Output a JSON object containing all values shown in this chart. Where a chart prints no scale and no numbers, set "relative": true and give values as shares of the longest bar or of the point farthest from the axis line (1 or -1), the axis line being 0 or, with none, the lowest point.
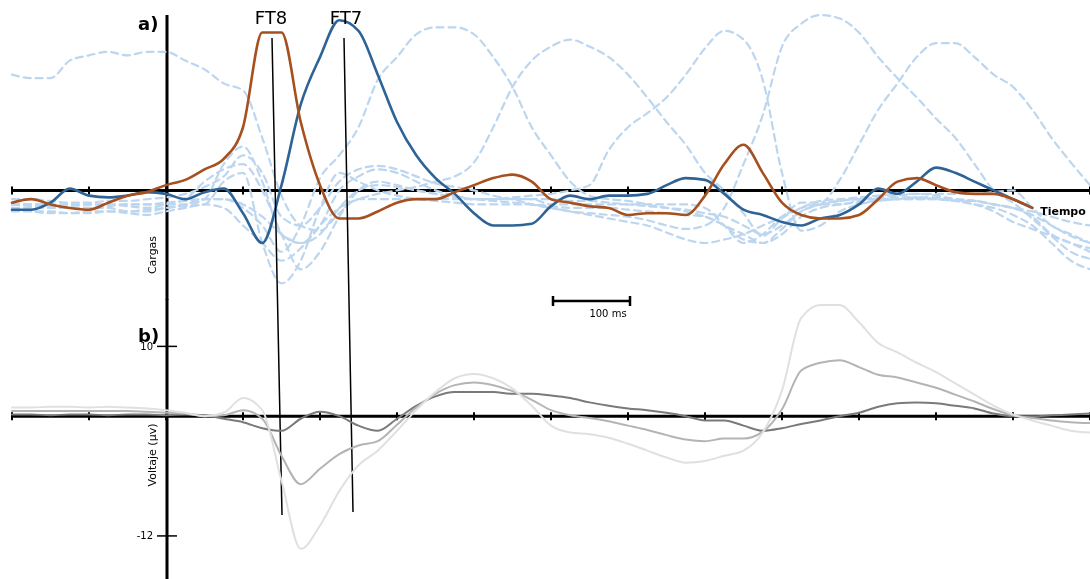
{
  "chart_data": [
    {
      "type": "line",
      "title": "a)",
      "xlabel": "Tiempo",
      "ylabel": "Cargas",
      "relative": true,
      "categories": [
        null,
        null,
        null,
        null,
        null,
        null,
        null,
        null,
        null,
        null,
        null,
        null,
        null,
        null,
        null,
        null,
        null,
        null,
        null,
        null,
        null,
        null,
        null,
        null,
        null,
        null,
        null,
        null,
        null,
        null,
        null,
        null,
        null,
        null,
        null,
        null,
        null,
        null,
        null,
        null,
        null,
        null,
        null,
        null,
        null,
        null,
        null,
        null,
        null,
        null,
        null,
        null,
        null,
        null,
        null,
        null,
        null
      ],
      "annotations": [
        "FT8",
        "FT7",
        "100 ms"
      ],
      "series": [
        {
          "color": "#bcd6ef",
          "line_style": "dashed",
          "values": [
            0.66,
            0.64,
            0.64,
            0.74,
            0.77,
            0.79,
            0.77,
            0.79,
            0.79,
            0.74,
            0.69,
            0.61,
            0.57,
            0.3,
            -0.03,
            -0.2,
            -0.23,
            -0.13,
            -0.05,
            -0.05,
            -0.05,
            -0.05,
            -0.05,
            -0.05,
            -0.05,
            -0.05,
            -0.05,
            -0.05,
            -0.08,
            -0.08,
            -0.08,
            -0.08,
            -0.08,
            -0.08,
            -0.08,
            -0.08,
            -0.1,
            -0.2,
            -0.3,
            -0.25,
            -0.15,
            -0.1,
            -0.08,
            -0.08,
            -0.06,
            -0.05,
            -0.05,
            -0.05,
            -0.05,
            -0.06,
            -0.06,
            -0.08,
            -0.1,
            -0.15,
            -0.25,
            -0.3,
            -0.35
          ]
        },
        {
          "color": "#bcd6ef",
          "line_style": "dashed",
          "values": [
            -0.08,
            -0.08,
            -0.09,
            -0.1,
            -0.1,
            -0.1,
            -0.12,
            -0.12,
            -0.1,
            -0.08,
            -0.05,
            -0.05,
            -0.1,
            -0.2,
            -0.35,
            -0.2,
            0.07,
            0.2,
            0.36,
            0.63,
            0.76,
            0.89,
            0.93,
            0.93,
            0.89,
            0.76,
            0.59,
            0.36,
            0.2,
            0.05,
            -0.03,
            -0.05,
            -0.06,
            -0.08,
            -0.1,
            -0.12,
            -0.15,
            -0.2,
            -0.28,
            -0.3,
            -0.22,
            -0.12,
            -0.08,
            -0.06,
            -0.05,
            -0.05,
            -0.04,
            -0.04,
            -0.05,
            -0.06,
            -0.08,
            -0.12,
            -0.18,
            -0.22,
            -0.26,
            -0.3,
            -0.33
          ]
        },
        {
          "color": "#bcd6ef",
          "line_style": "dashed",
          "values": [
            -0.1,
            -0.12,
            -0.13,
            -0.13,
            -0.12,
            -0.12,
            -0.13,
            -0.14,
            -0.12,
            -0.1,
            -0.08,
            -0.1,
            -0.2,
            -0.3,
            -0.4,
            -0.33,
            -0.2,
            -0.1,
            -0.05,
            -0.02,
            0,
            0.02,
            0.05,
            0.08,
            0.16,
            0.36,
            0.59,
            0.74,
            0.82,
            0.86,
            0.82,
            0.76,
            0.66,
            0.53,
            0.39,
            0.26,
            0.1,
            0,
            -0.13,
            -0.26,
            -0.16,
            -0.1,
            -0.06,
            -0.05,
            -0.04,
            -0.03,
            -0.02,
            -0.02,
            -0.03,
            -0.05,
            -0.06,
            -0.08,
            -0.1,
            -0.12,
            -0.15,
            -0.18,
            -0.2
          ]
        },
        {
          "color": "#bcd6ef",
          "line_style": "dashed",
          "values": [
            -0.1,
            -0.1,
            -0.1,
            -0.09,
            -0.08,
            -0.08,
            -0.09,
            -0.1,
            -0.08,
            -0.05,
            0.05,
            0.12,
            0.15,
            0,
            -0.25,
            -0.45,
            -0.35,
            -0.15,
            0,
            0.05,
            0.03,
            0,
            -0.02,
            -0.04,
            -0.05,
            -0.05,
            -0.04,
            -0.03,
            -0.02,
            0,
            0.03,
            0.23,
            0.36,
            0.44,
            0.53,
            0.66,
            0.81,
            0.91,
            0.86,
            0.63,
            0.1,
            -0.23,
            -0.2,
            -0.12,
            -0.08,
            -0.06,
            -0.05,
            -0.04,
            -0.04,
            -0.05,
            -0.06,
            -0.08,
            -0.1,
            -0.14,
            -0.2,
            -0.26,
            -0.3
          ]
        },
        {
          "color": "#bcd6ef",
          "line_style": "dashed",
          "values": [
            -0.05,
            -0.05,
            -0.06,
            -0.07,
            -0.07,
            -0.06,
            -0.06,
            -0.05,
            -0.04,
            -0.02,
            0.02,
            0.08,
            0.2,
            0.1,
            -0.15,
            -0.2,
            -0.1,
            0.05,
            0.12,
            0.14,
            0.12,
            0.08,
            0.04,
            0.02,
            0,
            -0.03,
            -0.05,
            -0.08,
            -0.1,
            -0.12,
            -0.13,
            -0.14,
            -0.15,
            -0.17,
            -0.2,
            -0.22,
            -0.2,
            -0.1,
            0.15,
            0.43,
            0.82,
            0.95,
            1,
            0.98,
            0.9,
            0.76,
            0.64,
            0.53,
            0.41,
            0.3,
            0.15,
            0,
            -0.07,
            -0.16,
            -0.26,
            -0.35,
            -0.39
          ]
        },
        {
          "color": "#bcd6ef",
          "line_style": "dashed",
          "values": [
            -0.08,
            -0.09,
            -0.1,
            -0.1,
            -0.1,
            -0.09,
            -0.08,
            -0.08,
            -0.07,
            -0.06,
            -0.05,
            -0.05,
            -0.08,
            -0.15,
            -0.25,
            -0.3,
            -0.25,
            -0.1,
            0,
            0.03,
            0.02,
            0,
            -0.02,
            -0.04,
            -0.05,
            -0.06,
            -0.07,
            -0.08,
            -0.1,
            -0.12,
            -0.14,
            -0.16,
            -0.18,
            -0.2,
            -0.24,
            -0.28,
            -0.3,
            -0.28,
            -0.25,
            -0.2,
            -0.15,
            -0.07,
            -0.07,
            0.06,
            0.26,
            0.46,
            0.61,
            0.76,
            0.84,
            0.84,
            0.76,
            0.66,
            0.59,
            0.46,
            0.3,
            0.16,
            0.03
          ]
        },
        {
          "color": "#bcd6ef",
          "line_style": "dashed",
          "values": [
            -0.12,
            -0.12,
            -0.12,
            -0.13,
            -0.13,
            -0.12,
            -0.12,
            -0.11,
            -0.1,
            -0.09,
            -0.08,
            0.05,
            0.1,
            -0.3,
            -0.53,
            -0.4,
            -0.1,
            0.1,
            0.05,
            0,
            -0.03,
            -0.05,
            -0.06,
            -0.07,
            -0.08,
            -0.08,
            -0.08,
            -0.08,
            -0.09,
            -0.1,
            -0.1,
            -0.1,
            -0.11,
            -0.12,
            -0.13,
            -0.14,
            -0.15,
            -0.2,
            -0.25,
            -0.3,
            -0.25,
            -0.15,
            -0.1,
            -0.08,
            -0.07,
            -0.06,
            -0.05,
            -0.05,
            -0.05,
            -0.06,
            -0.08,
            -0.1,
            -0.14,
            -0.2,
            -0.3,
            -0.4,
            -0.45
          ]
        },
        {
          "color": "#bcd6ef",
          "line_style": "dashed",
          "values": [
            -0.08,
            -0.08,
            -0.08,
            -0.08,
            -0.08,
            -0.08,
            -0.08,
            -0.08,
            -0.08,
            -0.08,
            -0.05,
            0.15,
            0.25,
            0.05,
            -0.25,
            -0.3,
            -0.2,
            0,
            0.08,
            0.12,
            0.1,
            0.05,
            0,
            -0.03,
            -0.05,
            -0.05,
            -0.05,
            -0.05,
            -0.05,
            -0.06,
            -0.06,
            -0.07,
            -0.08,
            -0.09,
            -0.1,
            -0.11,
            -0.13,
            -0.15,
            -0.2,
            -0.25,
            -0.2,
            -0.12,
            -0.08,
            -0.06,
            -0.05,
            -0.04,
            -0.03,
            -0.02,
            -0.02,
            -0.02,
            -0.02,
            -0.01,
            0,
            -0.1,
            -0.2,
            -0.25,
            -0.3
          ]
        },
        {
          "color": "#2e6396",
          "values": [
            -0.11,
            -0.11,
            -0.07,
            0.01,
            -0.03,
            -0.04,
            -0.03,
            -0.01,
            -0.02,
            -0.05,
            -0.01,
            0.01,
            -0.13,
            -0.3,
            0.03,
            0.49,
            0.76,
            0.97,
            0.91,
            0.66,
            0.39,
            0.2,
            0.07,
            -0.02,
            -0.13,
            -0.2,
            -0.2,
            -0.19,
            -0.09,
            -0.03,
            -0.05,
            -0.03,
            -0.03,
            -0.02,
            0.03,
            0.07,
            0.06,
            -0.02,
            -0.11,
            -0.14,
            -0.18,
            -0.2,
            -0.16,
            -0.14,
            -0.08,
            0.01,
            -0.02,
            0.05,
            0.13,
            0.1,
            0.05,
            0,
            -0.05,
            -0.1,
            null,
            null,
            null
          ]
        },
        {
          "color": "#a5501e",
          "values": [
            -0.07,
            -0.05,
            -0.08,
            -0.1,
            -0.11,
            -0.07,
            -0.03,
            -0.01,
            0.03,
            0.06,
            0.12,
            0.18,
            0.36,
            0.9,
            0.9,
            0.39,
            0.03,
            -0.16,
            -0.16,
            -0.12,
            -0.07,
            -0.05,
            -0.05,
            -0.01,
            0.03,
            0.07,
            0.09,
            0.05,
            -0.05,
            -0.07,
            -0.09,
            -0.1,
            -0.14,
            -0.13,
            -0.13,
            -0.14,
            -0.03,
            0.15,
            0.26,
            0.1,
            -0.07,
            -0.14,
            -0.16,
            -0.16,
            -0.14,
            -0.05,
            0.05,
            0.07,
            0.03,
            -0.01,
            -0.02,
            -0.02,
            -0.05,
            -0.1,
            null,
            null,
            null
          ]
        }
      ]
    },
    {
      "type": "line",
      "title": "b)",
      "ylabel": "Voltaje (μv)",
      "ylim": [
        -17,
        15.5
      ],
      "yticks": [
        -12,
        10
      ],
      "categories": [
        null,
        null,
        null,
        null,
        null,
        null,
        null,
        null,
        null,
        null,
        null,
        null,
        null,
        null,
        null,
        null,
        null,
        null,
        null,
        null,
        null,
        null,
        null,
        null,
        null,
        null,
        null,
        null,
        null,
        null,
        null,
        null,
        null,
        null,
        null,
        null,
        null,
        null,
        null,
        null,
        null,
        null,
        null,
        null,
        null,
        null,
        null,
        null,
        null,
        null,
        null,
        null,
        null,
        null,
        null,
        null,
        null
      ],
      "ref_lines": [
        {
          "axis": "y",
          "value": 1.9,
          "color": "#000000"
        }
      ],
      "series": [
        {
          "color": "#7a7a7a",
          "values": [
            2.1,
            2.1,
            2.0,
            2.1,
            2.1,
            2.0,
            2.1,
            2.1,
            2.0,
            2.1,
            2.0,
            1.6,
            1.2,
            0.5,
            0.2,
            1.6,
            2.4,
            1.9,
            0.8,
            0.2,
            1.6,
            3.1,
            4.2,
            4.7,
            4.7,
            4.7,
            4.5,
            4.5,
            4.3,
            4.0,
            3.5,
            3.1,
            2.8,
            2.6,
            2.3,
            1.9,
            1.4,
            1.4,
            0.8,
            0.2,
            0.5,
            1.0,
            1.4,
            1.9,
            2.3,
            3.0,
            3.4,
            3.5,
            3.4,
            3.1,
            2.8,
            2.2,
            1.9,
            1.9,
            2.0,
            2.1,
            2.2
          ]
        },
        {
          "color": "#b4b4b4",
          "values": [
            2.5,
            2.5,
            2.5,
            2.5,
            2.5,
            2.5,
            2.5,
            2.4,
            2.3,
            2.2,
            1.9,
            2.0,
            2.6,
            1.6,
            -2.7,
            -6.0,
            -4.2,
            -2.5,
            -1.5,
            -1.0,
            0.9,
            2.9,
            4.5,
            5.5,
            5.8,
            5.5,
            4.8,
            3.8,
            2.6,
            2.0,
            1.7,
            1.3,
            0.8,
            0.3,
            -0.3,
            -0.8,
            -1.0,
            -0.7,
            -0.7,
            0.1,
            2.7,
            7.2,
            8.1,
            8.4,
            7.6,
            6.7,
            6.4,
            5.8,
            5.2,
            4.4,
            3.6,
            2.7,
            2.0,
            1.7,
            1.4,
            1.2,
            1.1
          ]
        },
        {
          "color": "#e0e0e0",
          "values": [
            2.9,
            2.9,
            3.0,
            3.0,
            2.9,
            3.0,
            2.9,
            2.8,
            2.6,
            2.3,
            1.9,
            2.3,
            4.0,
            2.6,
            -5.6,
            -13.5,
            -10.8,
            -6.8,
            -3.8,
            -2.1,
            0.2,
            2.6,
            4.7,
            6.3,
            6.8,
            6.3,
            5.1,
            3.1,
            0.8,
            0,
            -0.2,
            -0.6,
            -1.3,
            -2.1,
            -2.9,
            -3.5,
            -3.3,
            -2.7,
            -2.1,
            0,
            4.9,
            13.3,
            14.8,
            14.8,
            12.8,
            10.4,
            9.3,
            8.1,
            7.0,
            5.7,
            4.4,
            3.1,
            2.1,
            1.4,
            0.8,
            0.2,
            0
          ]
        }
      ]
    }
  ]
}
